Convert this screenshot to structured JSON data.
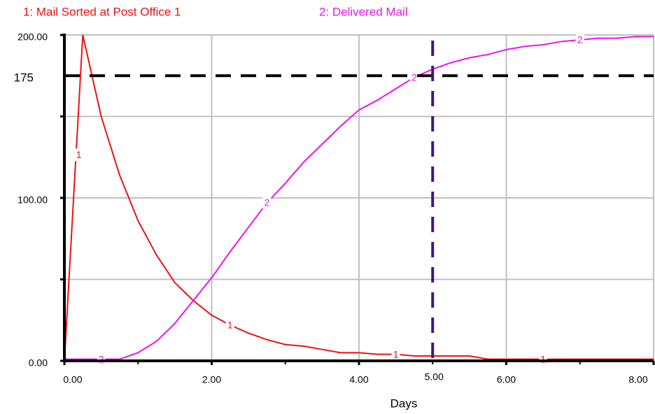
{
  "chart_data": {
    "type": "line",
    "x_label": "Days",
    "x": [
      0,
      0.25,
      0.5,
      0.75,
      1,
      1.25,
      1.5,
      1.75,
      2,
      2.25,
      2.5,
      2.75,
      3,
      3.25,
      3.5,
      3.75,
      4,
      4.25,
      4.5,
      4.75,
      5,
      5.25,
      5.5,
      5.75,
      6,
      6.25,
      6.5,
      6.75,
      7,
      7.25,
      7.5,
      7.75,
      8
    ],
    "series": [
      {
        "name": "1: Mail Sorted at Post Office 1",
        "marker_label": "1",
        "color": "#ee1111",
        "values": [
          0,
          200,
          150,
          114,
          86,
          65,
          48,
          37,
          28,
          22,
          17,
          13,
          10,
          9,
          7,
          5,
          5,
          4,
          4,
          3,
          3,
          3,
          3,
          1,
          1,
          1,
          1,
          1,
          1,
          1,
          1,
          1,
          1
        ]
      },
      {
        "name": "2: Delivered Mail",
        "marker_label": "2",
        "color": "#ee11ee",
        "values": [
          1,
          1,
          1,
          1,
          5,
          12,
          23,
          37,
          51,
          67,
          82,
          97,
          109,
          122,
          133,
          144,
          154,
          160,
          167,
          174,
          179,
          183,
          186,
          188,
          191,
          193,
          194,
          196,
          197,
          198,
          198,
          199,
          199
        ]
      }
    ],
    "xlim": [
      0,
      8
    ],
    "ylim": [
      0,
      200
    ],
    "xticks": [
      {
        "value": 0,
        "label": "0.00"
      },
      {
        "value": 2,
        "label": "2.00"
      },
      {
        "value": 4,
        "label": "4.00"
      },
      {
        "value": 6,
        "label": "6.00"
      },
      {
        "value": 8,
        "label": "8.00"
      }
    ],
    "yticks": [
      {
        "value": 0,
        "label": "0.00"
      },
      {
        "value": 100,
        "label": "100.00"
      },
      {
        "value": 200,
        "label": "200.00"
      }
    ],
    "minor_yticks": [
      50,
      150
    ],
    "minor_xticks": [
      1,
      3,
      5,
      7
    ],
    "reference_lines": [
      {
        "axis": "y",
        "value": 175,
        "label": "175",
        "color": "#000000"
      },
      {
        "axis": "x",
        "value": 5,
        "label": "5.00",
        "color": "#3d1a6e"
      }
    ],
    "grid": true
  }
}
